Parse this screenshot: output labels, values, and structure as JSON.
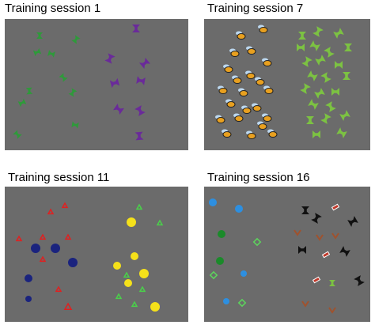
{
  "panels": [
    {
      "title": "Training session 1"
    },
    {
      "title": "Training session 7"
    },
    {
      "title": "Training session 11"
    },
    {
      "title": "Training session 16"
    }
  ]
}
